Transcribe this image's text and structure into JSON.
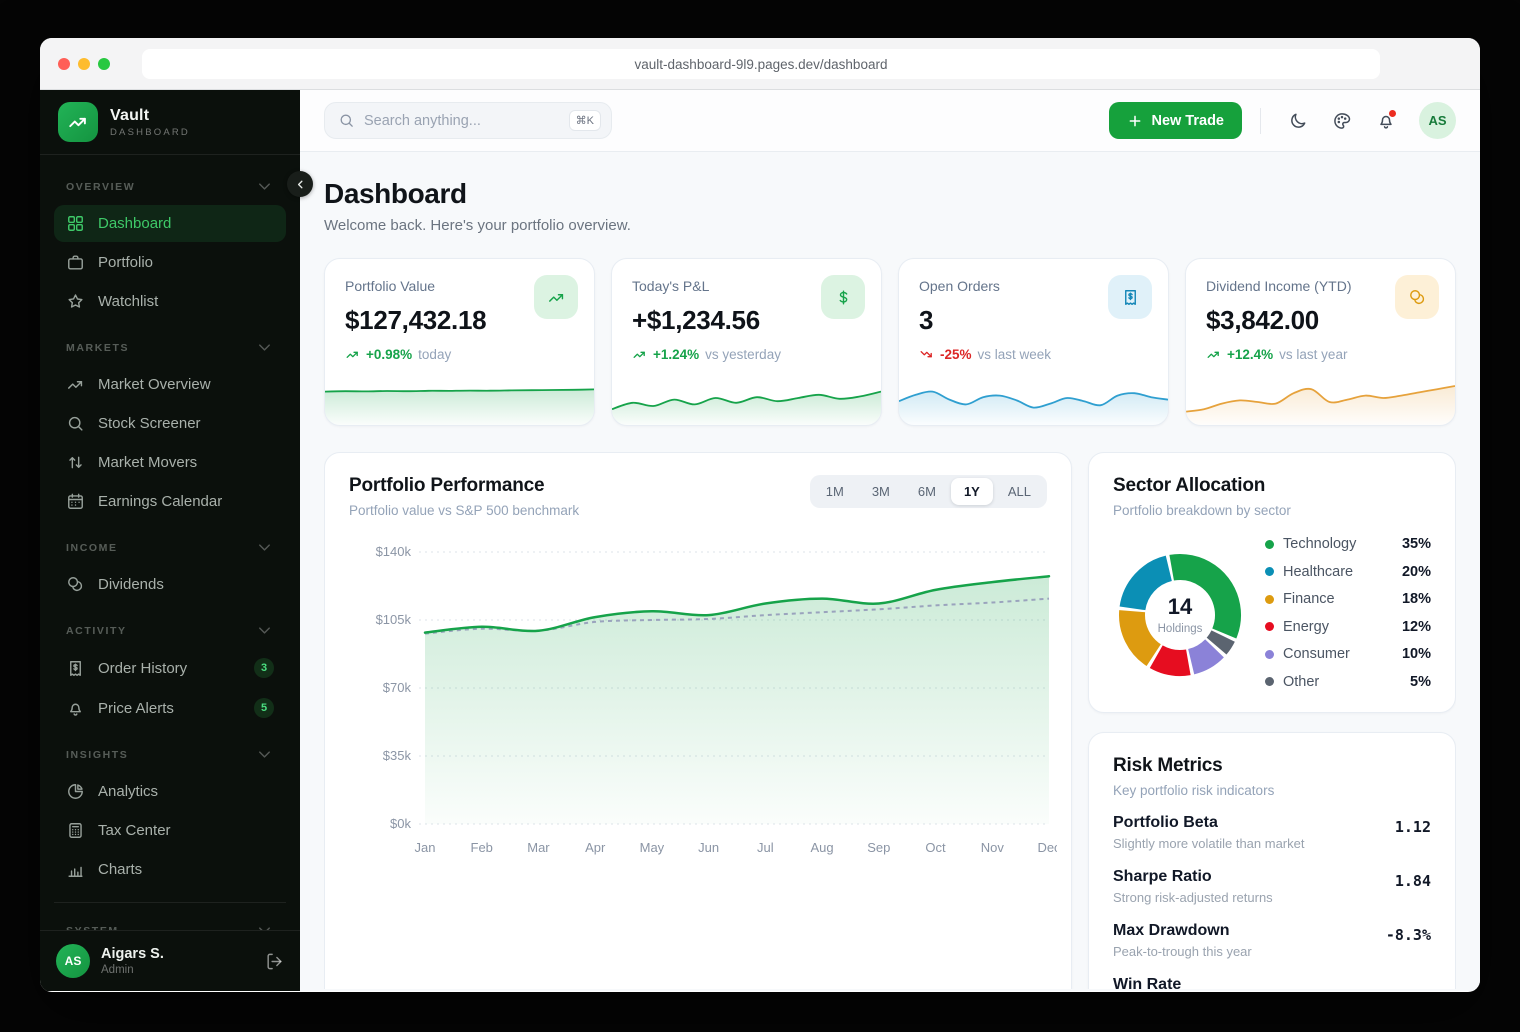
{
  "browser": {
    "url": "vault-dashboard-9l9.pages.dev/dashboard"
  },
  "sidebar": {
    "logo": {
      "title": "Vault",
      "subtitle": "DASHBOARD"
    },
    "sections": [
      {
        "label": "OVERVIEW",
        "items": [
          {
            "label": "Dashboard",
            "icon": "grid",
            "active": true
          },
          {
            "label": "Portfolio",
            "icon": "briefcase"
          },
          {
            "label": "Watchlist",
            "icon": "star"
          }
        ]
      },
      {
        "label": "MARKETS",
        "items": [
          {
            "label": "Market Overview",
            "icon": "trending-up"
          },
          {
            "label": "Stock Screener",
            "icon": "search"
          },
          {
            "label": "Market Movers",
            "icon": "arrows-up-down"
          },
          {
            "label": "Earnings Calendar",
            "icon": "calendar"
          }
        ]
      },
      {
        "label": "INCOME",
        "items": [
          {
            "label": "Dividends",
            "icon": "coins"
          }
        ]
      },
      {
        "label": "ACTIVITY",
        "items": [
          {
            "label": "Order History",
            "icon": "receipt-dollar",
            "badge": "3"
          },
          {
            "label": "Price Alerts",
            "icon": "bell",
            "badge": "5"
          }
        ]
      },
      {
        "label": "INSIGHTS",
        "items": [
          {
            "label": "Analytics",
            "icon": "pie-chart"
          },
          {
            "label": "Tax Center",
            "icon": "calculator"
          },
          {
            "label": "Charts",
            "icon": "bar-chart"
          }
        ]
      },
      {
        "label": "SYSTEM",
        "divided": true,
        "items": []
      }
    ],
    "user": {
      "initials": "AS",
      "name": "Aigars S.",
      "role": "Admin"
    }
  },
  "topbar": {
    "search_placeholder": "Search anything...",
    "search_shortcut": "⌘K",
    "new_trade_label": "New Trade",
    "avatar_initials": "AS"
  },
  "page": {
    "title": "Dashboard",
    "subtitle": "Welcome back. Here's your portfolio overview."
  },
  "stat_cards": [
    {
      "label": "Portfolio Value",
      "value": "$127,432.18",
      "delta": "+0.98%",
      "delta_note": "today",
      "trend": "up",
      "icon": "trending-up",
      "icon_bg": "#dcf3e2",
      "icon_color": "#16a34a",
      "delta_color": "#16a34a",
      "spark_color": "#16a34a",
      "spark": [
        7.6,
        7.7,
        7.65,
        7.75,
        7.7,
        7.8,
        7.78,
        7.85,
        7.82,
        7.9,
        7.95,
        8.0,
        8.05,
        8.15
      ]
    },
    {
      "label": "Today's P&L",
      "value": "+$1,234.56",
      "delta": "+1.24%",
      "delta_note": "vs yesterday",
      "trend": "up",
      "icon": "dollar",
      "icon_bg": "#dcf3e2",
      "icon_color": "#16a34a",
      "delta_color": "#16a34a",
      "spark_color": "#16a34a",
      "spark": [
        3.2,
        4.8,
        4.0,
        5.6,
        4.4,
        6.0,
        4.8,
        6.2,
        5.2,
        6.0,
        6.8,
        5.8,
        6.4,
        7.6
      ]
    },
    {
      "label": "Open Orders",
      "value": "3",
      "delta": "-25%",
      "delta_note": "vs last week",
      "trend": "down",
      "icon": "receipt-dollar",
      "icon_bg": "#e0f1f9",
      "icon_color": "#1587b8",
      "delta_color": "#dc2626",
      "spark_color": "#2f9fd0",
      "spark": [
        5.2,
        6.8,
        7.6,
        5.6,
        4.4,
        6.2,
        6.6,
        5.4,
        3.6,
        4.6,
        6.0,
        5.2,
        4.2,
        6.6,
        7.2,
        6.2,
        5.6
      ]
    },
    {
      "label": "Dividend Income (YTD)",
      "value": "$3,842.00",
      "delta": "+12.4%",
      "delta_note": "vs last year",
      "trend": "up",
      "icon": "coins",
      "icon_bg": "#fdf0d7",
      "icon_color": "#dd9b10",
      "delta_color": "#16a34a",
      "spark_color": "#e6a23c",
      "spark": [
        2.6,
        3.2,
        4.6,
        5.4,
        5.0,
        4.6,
        7.2,
        8.2,
        5.0,
        5.6,
        6.6,
        6.0,
        6.6,
        7.4,
        8.2,
        9.0
      ]
    }
  ],
  "chart_data": [
    {
      "id": "portfolio_performance",
      "type": "area",
      "title": "Portfolio Performance",
      "subtitle": "Portfolio value vs S&P 500 benchmark",
      "ranges": [
        "1M",
        "3M",
        "6M",
        "1Y",
        "ALL"
      ],
      "active_range": "1Y",
      "x": [
        "Jan",
        "Feb",
        "Mar",
        "Apr",
        "May",
        "Jun",
        "Jul",
        "Aug",
        "Sep",
        "Oct",
        "Nov",
        "Dec"
      ],
      "series": [
        {
          "name": "Portfolio value",
          "style": "solid-area",
          "color": "#16a34a",
          "values": [
            98500,
            101500,
            99500,
            106500,
            109500,
            107500,
            113500,
            116000,
            113500,
            120500,
            124500,
            127500
          ]
        },
        {
          "name": "S&P 500 benchmark",
          "style": "dashed",
          "color": "#9aa3bd",
          "values": [
            98000,
            100500,
            99500,
            104000,
            105000,
            105500,
            107500,
            109000,
            110500,
            112500,
            114000,
            116000
          ]
        }
      ],
      "ylim": [
        0,
        140000
      ],
      "yticks": [
        "$0k",
        "$35k",
        "$70k",
        "$105k",
        "$140k"
      ],
      "ytick_values": [
        0,
        35000,
        70000,
        105000,
        140000
      ],
      "grid": "dotted-horizontal",
      "legend_position": "none"
    },
    {
      "id": "sector_allocation",
      "type": "donut",
      "title": "Sector Allocation",
      "subtitle": "Portfolio breakdown by sector",
      "center": {
        "value": "14",
        "label": "Holdings"
      },
      "slices": [
        {
          "label": "Technology",
          "pct": 35,
          "color": "#16a34a"
        },
        {
          "label": "Healthcare",
          "pct": 20,
          "color": "#0b8fb5"
        },
        {
          "label": "Finance",
          "pct": 18,
          "color": "#dd9b10"
        },
        {
          "label": "Energy",
          "pct": 12,
          "color": "#e60d20"
        },
        {
          "label": "Consumer",
          "pct": 10,
          "color": "#8b82d8"
        },
        {
          "label": "Other",
          "pct": 5,
          "color": "#5b6470"
        }
      ]
    }
  ],
  "risk_metrics": {
    "title": "Risk Metrics",
    "subtitle": "Key portfolio risk indicators",
    "rows": [
      {
        "label": "Portfolio Beta",
        "desc": "Slightly more volatile than market",
        "value": "1.12"
      },
      {
        "label": "Sharpe Ratio",
        "desc": "Strong risk-adjusted returns",
        "value": "1.84"
      },
      {
        "label": "Max Drawdown",
        "desc": "Peak-to-trough this year",
        "value": "-8.3%"
      },
      {
        "label": "Win Rate",
        "desc": "",
        "value": ""
      }
    ]
  }
}
